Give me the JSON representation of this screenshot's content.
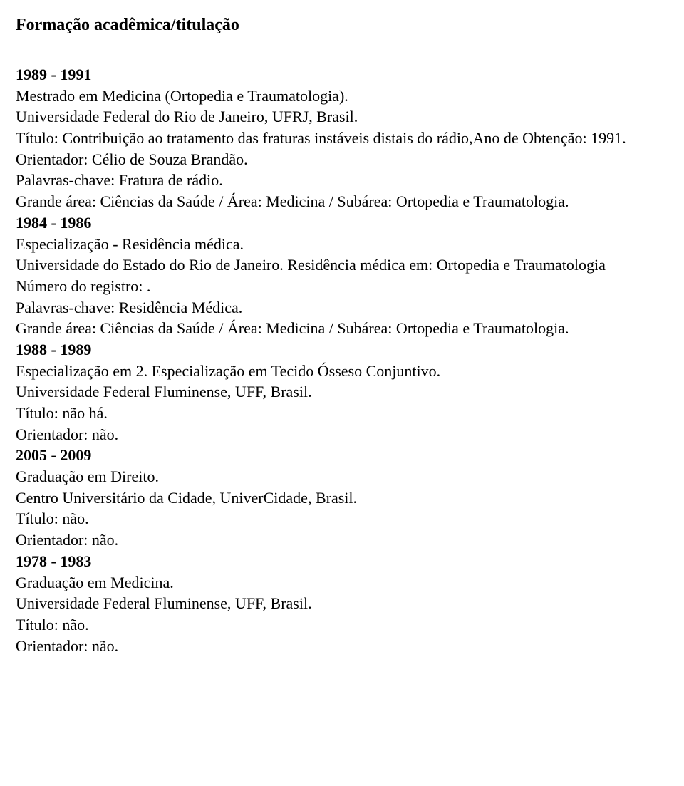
{
  "section_title": "Formação acadêmica/titulação",
  "entries": [
    {
      "year": "1989 - 1991",
      "lines": [
        "Mestrado em Medicina (Ortopedia e Traumatologia).",
        "Universidade Federal do Rio de Janeiro, UFRJ, Brasil.",
        "Título: Contribuição ao tratamento das fraturas instáveis distais do rádio,Ano de Obtenção: 1991.",
        "Orientador: Célio de Souza Brandão.",
        "Palavras-chave: Fratura de rádio.",
        "Grande área: Ciências da Saúde / Área: Medicina / Subárea: Ortopedia e Traumatologia."
      ]
    },
    {
      "year": "1984 - 1986",
      "lines": [
        "Especialização - Residência médica.",
        "Universidade do Estado do Rio de Janeiro. Residência médica em: Ortopedia e Traumatologia",
        "Número do registro: .",
        "Palavras-chave: Residência Médica.",
        "Grande área: Ciências da Saúde / Área: Medicina / Subárea: Ortopedia e Traumatologia."
      ]
    },
    {
      "year": "1988 - 1989",
      "lines": [
        "Especialização em 2. Especialização em Tecido Ósseso Conjuntivo.",
        "Universidade Federal Fluminense, UFF, Brasil.",
        "Título: não há.",
        "Orientador: não."
      ]
    },
    {
      "year": "2005 - 2009",
      "lines": [
        "Graduação em Direito.",
        "Centro Universitário da Cidade, UniverCidade, Brasil.",
        "Título: não.",
        "Orientador: não."
      ]
    },
    {
      "year": "1978 - 1983",
      "lines": [
        "Graduação em Medicina.",
        "Universidade Federal Fluminense, UFF, Brasil.",
        "Título: não.",
        "Orientador: não."
      ]
    }
  ]
}
